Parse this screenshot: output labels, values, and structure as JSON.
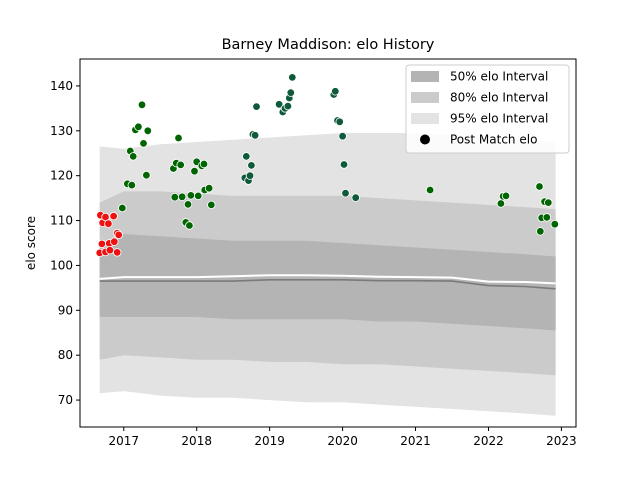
{
  "chart_data": {
    "type": "scatter",
    "title": "Barney Maddison: elo History",
    "xlabel": "",
    "ylabel": "elo score",
    "xlim": [
      2016.4,
      2023.2
    ],
    "ylim": [
      64,
      146
    ],
    "xticks": [
      2017,
      2018,
      2019,
      2020,
      2021,
      2022,
      2023
    ],
    "xtick_labels": [
      "2017",
      "2018",
      "2019",
      "2020",
      "2021",
      "2022",
      "2023"
    ],
    "yticks": [
      70,
      80,
      90,
      100,
      110,
      120,
      130,
      140
    ],
    "ytick_labels": [
      "70",
      "80",
      "90",
      "100",
      "110",
      "120",
      "130",
      "140"
    ],
    "legend": {
      "position": "top-right",
      "entries": [
        {
          "label": "50% elo Interval",
          "color": "#b4b4b4"
        },
        {
          "label": "80% elo Interval",
          "color": "#cbcbcb"
        },
        {
          "label": "95% elo Interval",
          "color": "#e3e3e3"
        },
        {
          "label": "Post Match elo",
          "color": "#000000"
        }
      ]
    },
    "intervals": {
      "x": [
        2016.67,
        2017.0,
        2017.5,
        2018.0,
        2018.5,
        2019.0,
        2019.5,
        2020.0,
        2020.5,
        2021.0,
        2021.5,
        2022.0,
        2022.5,
        2022.92
      ],
      "p95_low": [
        71.5,
        72.0,
        71.0,
        70.5,
        70.5,
        70.0,
        69.5,
        69.5,
        69.0,
        68.5,
        68.0,
        67.5,
        67.0,
        66.5
      ],
      "p80_low": [
        79.0,
        80.0,
        79.5,
        79.0,
        79.0,
        78.5,
        78.5,
        78.0,
        78.0,
        77.5,
        77.0,
        76.5,
        76.0,
        75.5
      ],
      "p50_low": [
        88.5,
        88.5,
        88.5,
        88.5,
        88.0,
        88.0,
        88.0,
        88.0,
        87.5,
        87.5,
        87.0,
        86.5,
        86.0,
        85.5
      ],
      "p50_high": [
        104.5,
        107.0,
        106.5,
        106.0,
        105.5,
        105.5,
        105.5,
        105.0,
        104.5,
        104.0,
        103.5,
        103.0,
        102.5,
        102.0
      ],
      "p80_high": [
        114.0,
        116.5,
        116.5,
        116.0,
        115.5,
        115.5,
        115.5,
        115.5,
        115.0,
        114.5,
        114.0,
        113.5,
        113.0,
        112.5
      ],
      "p95_high": [
        126.5,
        126.0,
        127.0,
        127.5,
        128.0,
        128.5,
        129.0,
        129.5,
        129.5,
        129.5,
        129.0,
        128.5,
        128.0,
        127.5
      ],
      "mean": [
        96.5,
        96.5,
        96.5,
        96.5,
        96.5,
        96.8,
        96.8,
        96.8,
        96.6,
        96.6,
        96.5,
        95.5,
        95.3,
        94.8
      ],
      "median": [
        97.0,
        97.4,
        97.4,
        97.4,
        97.6,
        97.8,
        97.8,
        97.7,
        97.5,
        97.4,
        97.3,
        96.4,
        96.3,
        96.0
      ]
    },
    "series": [
      {
        "color": "#ee1111",
        "points": [
          [
            2016.68,
            111.2
          ],
          [
            2016.71,
            109.5
          ],
          [
            2016.75,
            110.8
          ],
          [
            2016.79,
            109.3
          ],
          [
            2016.86,
            111.0
          ],
          [
            2016.91,
            107.2
          ],
          [
            2016.93,
            106.8
          ],
          [
            2016.67,
            102.8
          ],
          [
            2016.7,
            104.8
          ],
          [
            2016.75,
            103.0
          ],
          [
            2016.8,
            104.9
          ],
          [
            2016.87,
            105.3
          ],
          [
            2016.91,
            102.9
          ],
          [
            2016.81,
            103.4
          ]
        ]
      },
      {
        "color": "#006400",
        "points": [
          [
            2016.98,
            112.8
          ],
          [
            2017.05,
            118.2
          ],
          [
            2017.09,
            125.5
          ],
          [
            2017.11,
            117.9
          ],
          [
            2017.13,
            124.3
          ],
          [
            2017.16,
            130.2
          ],
          [
            2017.2,
            130.9
          ],
          [
            2017.25,
            135.8
          ],
          [
            2017.27,
            127.2
          ],
          [
            2017.31,
            120.1
          ],
          [
            2017.33,
            130.0
          ],
          [
            2017.68,
            121.6
          ],
          [
            2017.72,
            122.8
          ],
          [
            2017.75,
            128.4
          ],
          [
            2017.78,
            122.4
          ],
          [
            2017.7,
            115.2
          ],
          [
            2017.8,
            115.3
          ],
          [
            2017.85,
            109.6
          ],
          [
            2017.88,
            113.6
          ],
          [
            2017.9,
            108.9
          ],
          [
            2017.92,
            115.6
          ],
          [
            2017.97,
            121.0
          ],
          [
            2018.0,
            123.1
          ],
          [
            2018.02,
            115.5
          ],
          [
            2018.07,
            122.2
          ],
          [
            2018.1,
            122.6
          ],
          [
            2018.11,
            116.8
          ],
          [
            2018.17,
            117.2
          ],
          [
            2018.2,
            113.5
          ],
          [
            2021.2,
            116.8
          ],
          [
            2022.17,
            113.8
          ],
          [
            2022.2,
            115.4
          ],
          [
            2022.24,
            115.5
          ],
          [
            2022.7,
            117.6
          ],
          [
            2022.71,
            107.6
          ],
          [
            2022.73,
            110.6
          ],
          [
            2022.77,
            114.2
          ],
          [
            2022.8,
            110.7
          ],
          [
            2022.82,
            114.0
          ],
          [
            2022.91,
            109.2
          ]
        ]
      },
      {
        "color": "#0f5a3a",
        "points": [
          [
            2018.66,
            119.5
          ],
          [
            2018.68,
            124.3
          ],
          [
            2018.71,
            118.9
          ],
          [
            2018.73,
            120.0
          ],
          [
            2018.75,
            122.3
          ],
          [
            2018.77,
            129.2
          ],
          [
            2018.8,
            129.0
          ],
          [
            2018.82,
            135.4
          ],
          [
            2019.13,
            135.9
          ],
          [
            2019.18,
            134.2
          ],
          [
            2019.21,
            135.0
          ],
          [
            2019.25,
            135.5
          ],
          [
            2019.27,
            137.3
          ],
          [
            2019.29,
            138.5
          ],
          [
            2019.31,
            141.9
          ],
          [
            2019.88,
            138.1
          ],
          [
            2019.9,
            138.8
          ],
          [
            2019.93,
            132.3
          ],
          [
            2019.96,
            132.0
          ],
          [
            2020.0,
            128.8
          ],
          [
            2020.02,
            122.5
          ],
          [
            2020.04,
            116.1
          ],
          [
            2020.18,
            115.1
          ]
        ]
      }
    ]
  }
}
